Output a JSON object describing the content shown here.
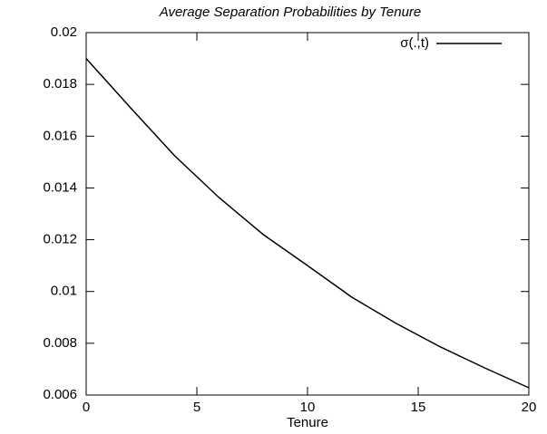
{
  "chart_data": {
    "type": "line",
    "title": "Average Separation Probabilities by Tenure",
    "x_label": "Tenure",
    "x": [
      0,
      2,
      4,
      6,
      8,
      10,
      12,
      14,
      16,
      18,
      20
    ],
    "series": [
      {
        "name": "σ(.,t)",
        "color": "#000000",
        "values": [
          0.019,
          0.0171,
          0.01524,
          0.01363,
          0.0122,
          0.011,
          0.00978,
          0.00877,
          0.00786,
          0.00705,
          0.00628
        ]
      }
    ],
    "xlim": [
      0,
      20
    ],
    "xticks": [
      0,
      5,
      10,
      15,
      20
    ],
    "ylim": [
      0.006,
      0.02
    ],
    "yticks": [
      0.006,
      0.008,
      0.01,
      0.012,
      0.014,
      0.016,
      0.018,
      0.02
    ],
    "legend": "top-right",
    "grid": false
  }
}
